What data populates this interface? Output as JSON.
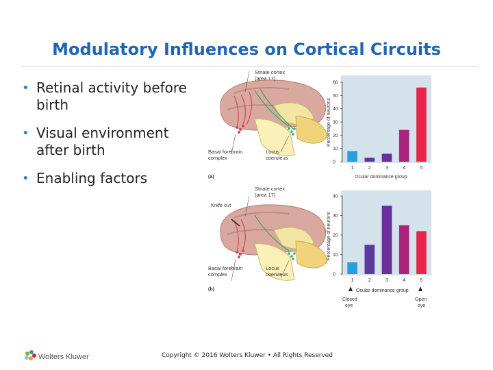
{
  "slide": {
    "title": "Modulatory Influences on Cortical Circuits",
    "bullets": [
      "Retinal activity before birth",
      "Visual environment after birth",
      "Enabling factors"
    ]
  },
  "figure": {
    "panel_a": {
      "label": "(a)",
      "brain_labels": {
        "cortex": "Striate cortex (area 17)",
        "basal": "Basal forebrain complex",
        "locus": "Locus coeruleus"
      }
    },
    "panel_b": {
      "label": "(b)",
      "brain_labels": {
        "cortex": "Striate cortex (area 17)",
        "basal": "Basal forebrain complex",
        "locus": "Locus coeruleus",
        "cut": "Knife cut"
      },
      "closed_eye": "Closed eye",
      "open_eye": "Open eye"
    }
  },
  "chart_data": [
    {
      "type": "bar",
      "panel": "(a)",
      "categories": [
        "1",
        "2",
        "3",
        "4",
        "5"
      ],
      "values": [
        8,
        3,
        6,
        24,
        56
      ],
      "ylabel": "Percentage of neurons",
      "xlabel": "Ocular dominance group",
      "ylim": [
        0,
        60
      ],
      "yticks": [
        "0",
        "10",
        "20",
        "30",
        "40",
        "50",
        "60"
      ],
      "colors": [
        "#2a9de0",
        "#5b3a9e",
        "#6a2f9b",
        "#a8257e",
        "#e8254a"
      ]
    },
    {
      "type": "bar",
      "panel": "(b)",
      "categories": [
        "1",
        "2",
        "3",
        "4",
        "5"
      ],
      "values": [
        6,
        15,
        35,
        25,
        22
      ],
      "ylabel": "Percentage of neurons",
      "xlabel": "Ocular dominance group",
      "ylim": [
        0,
        40
      ],
      "yticks": [
        "0",
        "10",
        "20",
        "30",
        "40"
      ],
      "colors": [
        "#2a9de0",
        "#5b3a9e",
        "#6a2f9b",
        "#a8257e",
        "#e8254a"
      ]
    }
  ],
  "footer": {
    "brand": "Wolters Kluwer",
    "copyright": "Copyright © 2016 Wolters Kluwer • All Rights Reserved"
  }
}
